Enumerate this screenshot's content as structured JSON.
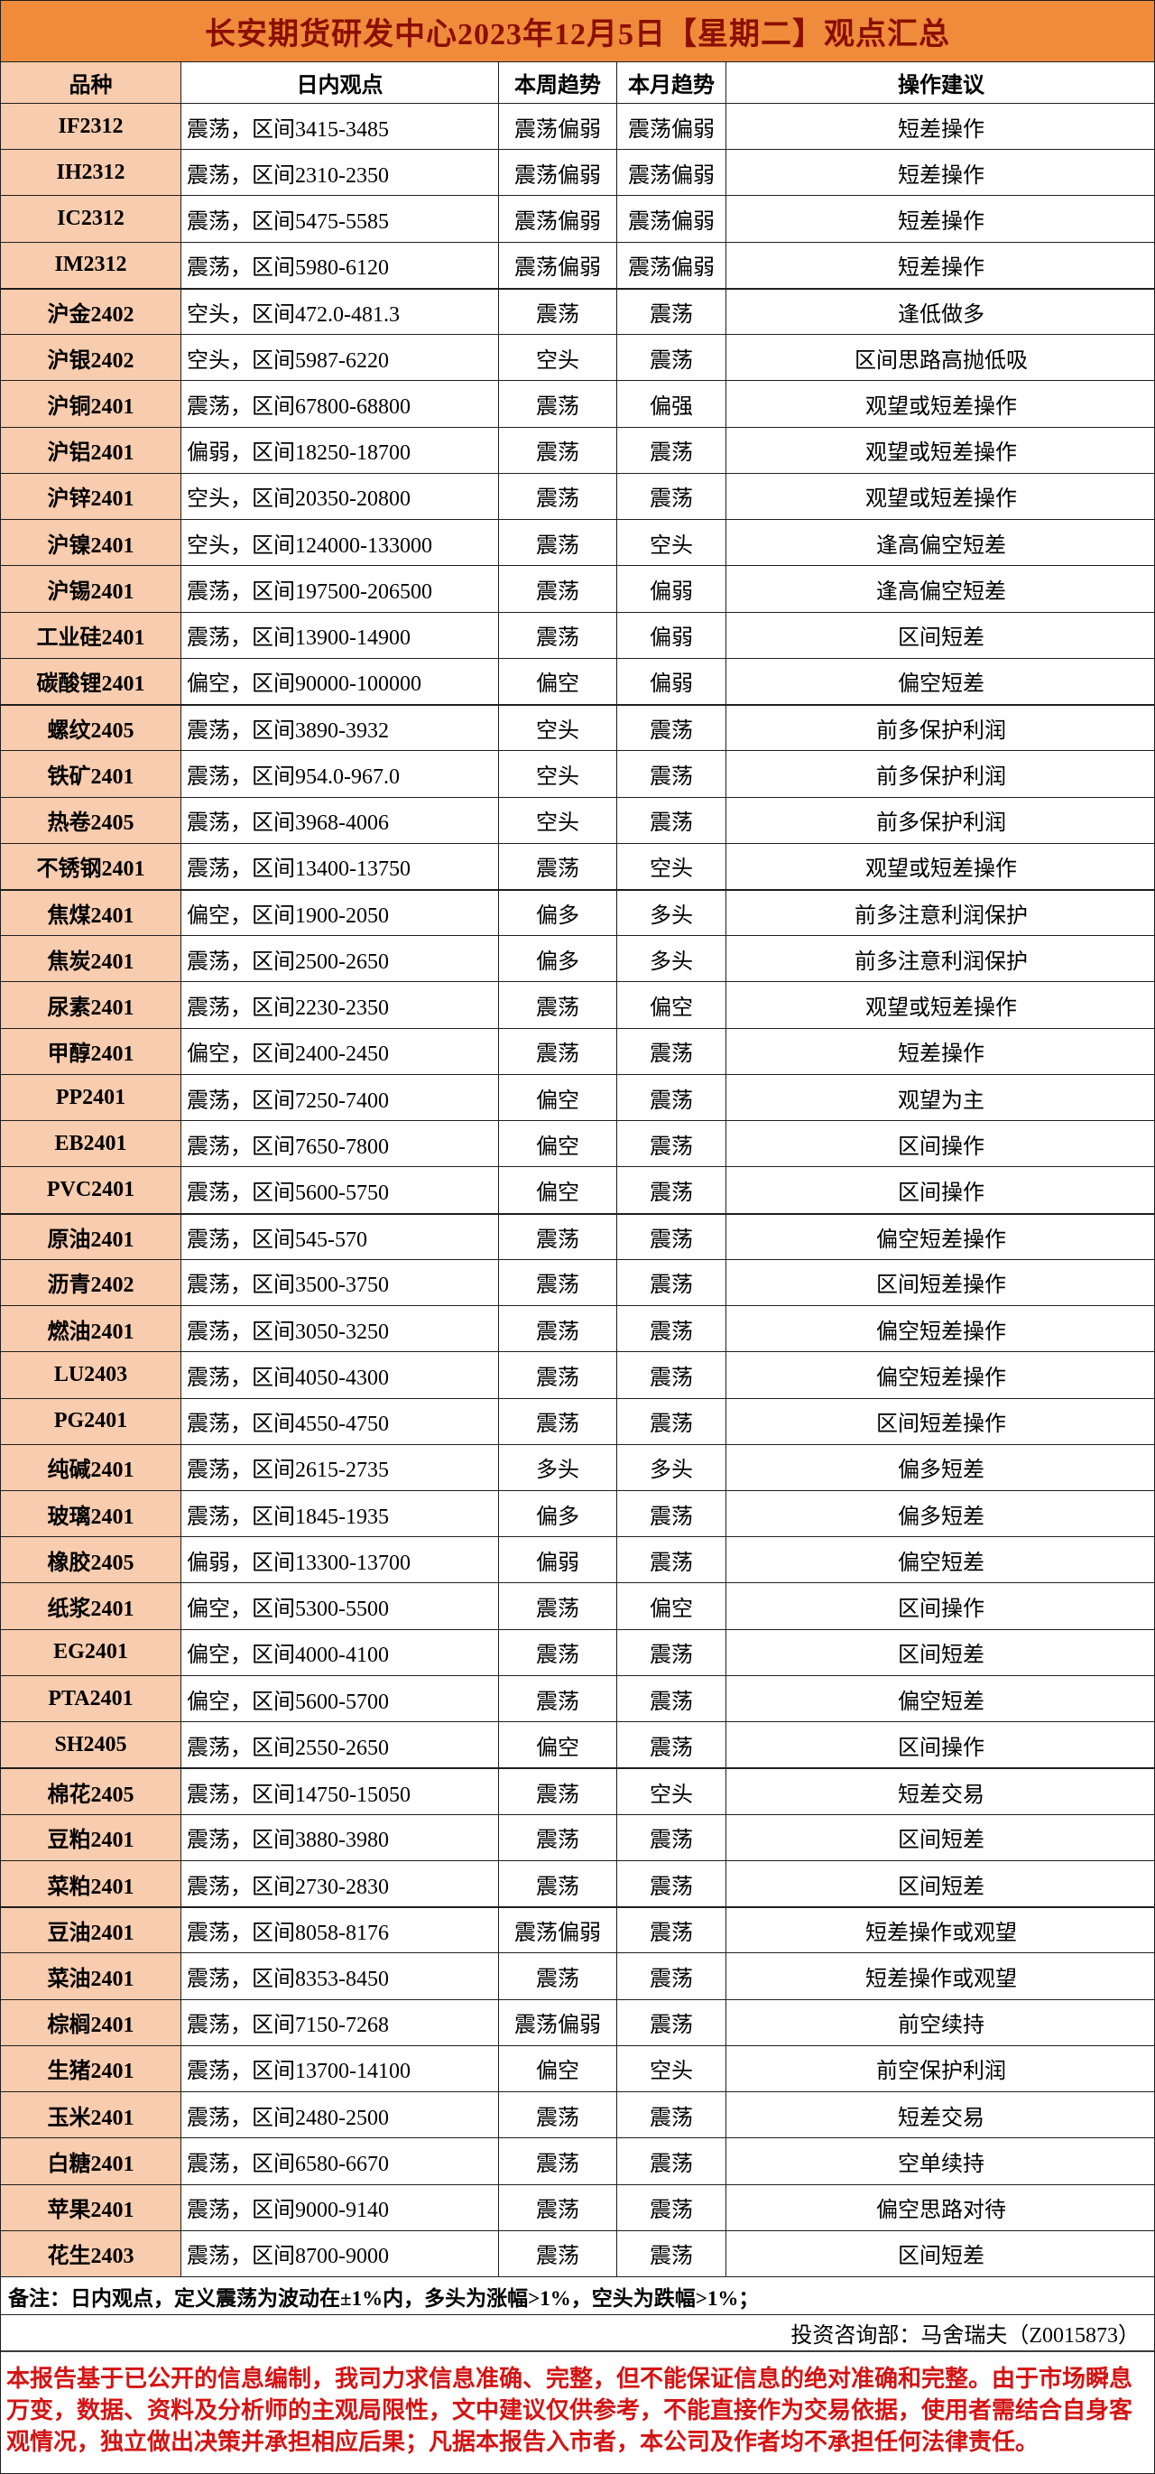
{
  "title": "长安期货研发中心2023年12月5日【星期二】观点汇总",
  "colors": {
    "title_bg": "#EF8B3B",
    "title_text": "#8B0E00",
    "label_bg": "#F8CCAE",
    "disclaimer_text": "#D41414",
    "border": "#1F1F1F"
  },
  "table": {
    "columns": [
      "品种",
      "日内观点",
      "本周趋势",
      "本月趋势",
      "操作建议"
    ],
    "rows": [
      {
        "variety": "IF2312",
        "intraday": "震荡，区间3415-3485",
        "week": "震荡偏弱",
        "month": "震荡偏弱",
        "advice": "短差操作",
        "group_start": false
      },
      {
        "variety": "IH2312",
        "intraday": "震荡，区间2310-2350",
        "week": "震荡偏弱",
        "month": "震荡偏弱",
        "advice": "短差操作",
        "group_start": false
      },
      {
        "variety": "IC2312",
        "intraday": "震荡，区间5475-5585",
        "week": "震荡偏弱",
        "month": "震荡偏弱",
        "advice": "短差操作",
        "group_start": false
      },
      {
        "variety": "IM2312",
        "intraday": "震荡，区间5980-6120",
        "week": "震荡偏弱",
        "month": "震荡偏弱",
        "advice": "短差操作",
        "group_start": false
      },
      {
        "variety": "沪金2402",
        "intraday": "空头，区间472.0-481.3",
        "week": "震荡",
        "month": "震荡",
        "advice": "逢低做多",
        "group_start": true
      },
      {
        "variety": "沪银2402",
        "intraday": "空头，区间5987-6220",
        "week": "空头",
        "month": "震荡",
        "advice": "区间思路高抛低吸",
        "group_start": false
      },
      {
        "variety": "沪铜2401",
        "intraday": "震荡，区间67800-68800",
        "week": "震荡",
        "month": "偏强",
        "advice": "观望或短差操作",
        "group_start": false
      },
      {
        "variety": "沪铝2401",
        "intraday": "偏弱，区间18250-18700",
        "week": "震荡",
        "month": "震荡",
        "advice": "观望或短差操作",
        "group_start": false
      },
      {
        "variety": "沪锌2401",
        "intraday": "空头，区间20350-20800",
        "week": "震荡",
        "month": "震荡",
        "advice": "观望或短差操作",
        "group_start": false
      },
      {
        "variety": "沪镍2401",
        "intraday": "空头，区间124000-133000",
        "week": "震荡",
        "month": "空头",
        "advice": "逢高偏空短差",
        "group_start": false
      },
      {
        "variety": "沪锡2401",
        "intraday": "震荡，区间197500-206500",
        "week": "震荡",
        "month": "偏弱",
        "advice": "逢高偏空短差",
        "group_start": false
      },
      {
        "variety": "工业硅2401",
        "intraday": "震荡，区间13900-14900",
        "week": "震荡",
        "month": "偏弱",
        "advice": "区间短差",
        "group_start": false
      },
      {
        "variety": "碳酸锂2401",
        "intraday": "偏空，区间90000-100000",
        "week": "偏空",
        "month": "偏弱",
        "advice": "偏空短差",
        "group_start": false
      },
      {
        "variety": "螺纹2405",
        "intraday": "震荡，区间3890-3932",
        "week": "空头",
        "month": "震荡",
        "advice": "前多保护利润",
        "group_start": true
      },
      {
        "variety": "铁矿2401",
        "intraday": "震荡，区间954.0-967.0",
        "week": "空头",
        "month": "震荡",
        "advice": "前多保护利润",
        "group_start": false
      },
      {
        "variety": "热卷2405",
        "intraday": "震荡，区间3968-4006",
        "week": "空头",
        "month": "震荡",
        "advice": "前多保护利润",
        "group_start": false
      },
      {
        "variety": "不锈钢2401",
        "intraday": "震荡，区间13400-13750",
        "week": "震荡",
        "month": "空头",
        "advice": "观望或短差操作",
        "group_start": false
      },
      {
        "variety": "焦煤2401",
        "intraday": "偏空，区间1900-2050",
        "week": "偏多",
        "month": "多头",
        "advice": "前多注意利润保护",
        "group_start": true
      },
      {
        "variety": "焦炭2401",
        "intraday": "震荡，区间2500-2650",
        "week": "偏多",
        "month": "多头",
        "advice": "前多注意利润保护",
        "group_start": false
      },
      {
        "variety": "尿素2401",
        "intraday": "震荡，区间2230-2350",
        "week": "震荡",
        "month": "偏空",
        "advice": "观望或短差操作",
        "group_start": false
      },
      {
        "variety": "甲醇2401",
        "intraday": "偏空，区间2400-2450",
        "week": "震荡",
        "month": "震荡",
        "advice": "短差操作",
        "group_start": false
      },
      {
        "variety": "PP2401",
        "intraday": "震荡，区间7250-7400",
        "week": "偏空",
        "month": "震荡",
        "advice": "观望为主",
        "group_start": false
      },
      {
        "variety": "EB2401",
        "intraday": "震荡，区间7650-7800",
        "week": "偏空",
        "month": "震荡",
        "advice": "区间操作",
        "group_start": false
      },
      {
        "variety": "PVC2401",
        "intraday": "震荡，区间5600-5750",
        "week": "偏空",
        "month": "震荡",
        "advice": "区间操作",
        "group_start": false
      },
      {
        "variety": "原油2401",
        "intraday": "震荡，区间545-570",
        "week": "震荡",
        "month": "震荡",
        "advice": "偏空短差操作",
        "group_start": true
      },
      {
        "variety": "沥青2402",
        "intraday": "震荡，区间3500-3750",
        "week": "震荡",
        "month": "震荡",
        "advice": "区间短差操作",
        "group_start": false
      },
      {
        "variety": "燃油2401",
        "intraday": "震荡，区间3050-3250",
        "week": "震荡",
        "month": "震荡",
        "advice": "偏空短差操作",
        "group_start": false
      },
      {
        "variety": "LU2403",
        "intraday": "震荡，区间4050-4300",
        "week": "震荡",
        "month": "震荡",
        "advice": "偏空短差操作",
        "group_start": false
      },
      {
        "variety": "PG2401",
        "intraday": "震荡，区间4550-4750",
        "week": "震荡",
        "month": "震荡",
        "advice": "区间短差操作",
        "group_start": false
      },
      {
        "variety": "纯碱2401",
        "intraday": "震荡，区间2615-2735",
        "week": "多头",
        "month": "多头",
        "advice": "偏多短差",
        "group_start": false
      },
      {
        "variety": "玻璃2401",
        "intraday": "震荡，区间1845-1935",
        "week": "偏多",
        "month": "震荡",
        "advice": "偏多短差",
        "group_start": false
      },
      {
        "variety": "橡胶2405",
        "intraday": "偏弱，区间13300-13700",
        "week": "偏弱",
        "month": "震荡",
        "advice": "偏空短差",
        "group_start": false
      },
      {
        "variety": "纸浆2401",
        "intraday": "偏空，区间5300-5500",
        "week": "震荡",
        "month": "偏空",
        "advice": "区间操作",
        "group_start": false
      },
      {
        "variety": "EG2401",
        "intraday": "偏空，区间4000-4100",
        "week": "震荡",
        "month": "震荡",
        "advice": "区间短差",
        "group_start": false
      },
      {
        "variety": "PTA2401",
        "intraday": "偏空，区间5600-5700",
        "week": "震荡",
        "month": "震荡",
        "advice": "偏空短差",
        "group_start": false
      },
      {
        "variety": "SH2405",
        "intraday": "震荡，区间2550-2650",
        "week": "偏空",
        "month": "震荡",
        "advice": "区间操作",
        "group_start": false
      },
      {
        "variety": "棉花2405",
        "intraday": "震荡，区间14750-15050",
        "week": "震荡",
        "month": "空头",
        "advice": "短差交易",
        "group_start": true
      },
      {
        "variety": "豆粕2401",
        "intraday": "震荡，区间3880-3980",
        "week": "震荡",
        "month": "震荡",
        "advice": "区间短差",
        "group_start": false
      },
      {
        "variety": "菜粕2401",
        "intraday": "震荡，区间2730-2830",
        "week": "震荡",
        "month": "震荡",
        "advice": "区间短差",
        "group_start": false
      },
      {
        "variety": "豆油2401",
        "intraday": "震荡，区间8058-8176",
        "week": "震荡偏弱",
        "month": "震荡",
        "advice": "短差操作或观望",
        "group_start": true
      },
      {
        "variety": "菜油2401",
        "intraday": "震荡，区间8353-8450",
        "week": "震荡",
        "month": "震荡",
        "advice": "短差操作或观望",
        "group_start": false
      },
      {
        "variety": "棕榈2401",
        "intraday": "震荡，区间7150-7268",
        "week": "震荡偏弱",
        "month": "震荡",
        "advice": "前空续持",
        "group_start": false
      },
      {
        "variety": "生猪2401",
        "intraday": "震荡，区间13700-14100",
        "week": "偏空",
        "month": "空头",
        "advice": "前空保护利润",
        "group_start": false
      },
      {
        "variety": "玉米2401",
        "intraday": "震荡，区间2480-2500",
        "week": "震荡",
        "month": "震荡",
        "advice": "短差交易",
        "group_start": false
      },
      {
        "variety": "白糖2401",
        "intraday": "震荡，区间6580-6670",
        "week": "震荡",
        "month": "震荡",
        "advice": "空单续持",
        "group_start": false
      },
      {
        "variety": "苹果2401",
        "intraday": "震荡，区间9000-9140",
        "week": "震荡",
        "month": "震荡",
        "advice": "偏空思路对待",
        "group_start": false
      },
      {
        "variety": "花生2403",
        "intraday": "震荡，区间8700-9000",
        "week": "震荡",
        "month": "震荡",
        "advice": "区间短差",
        "group_start": false
      }
    ]
  },
  "footer": {
    "note": "备注：日内观点，定义震荡为波动在±1%内，多头为涨幅>1%，空头为跌幅>1%；",
    "department_line": "投资咨询部：马舍瑞夫（Z0015873）",
    "disclaimer": "本报告基于已公开的信息编制，我司力求信息准确、完整，但不能保证信息的绝对准确和完整。由于市场瞬息万变，数据、资料及分析师的主观局限性，文中建议仅供参考，不能直接作为交易依据，使用者需结合自身客观情况，独立做出决策并承担相应后果；凡据本报告入市者，本公司及作者均不承担任何法律责任。"
  }
}
